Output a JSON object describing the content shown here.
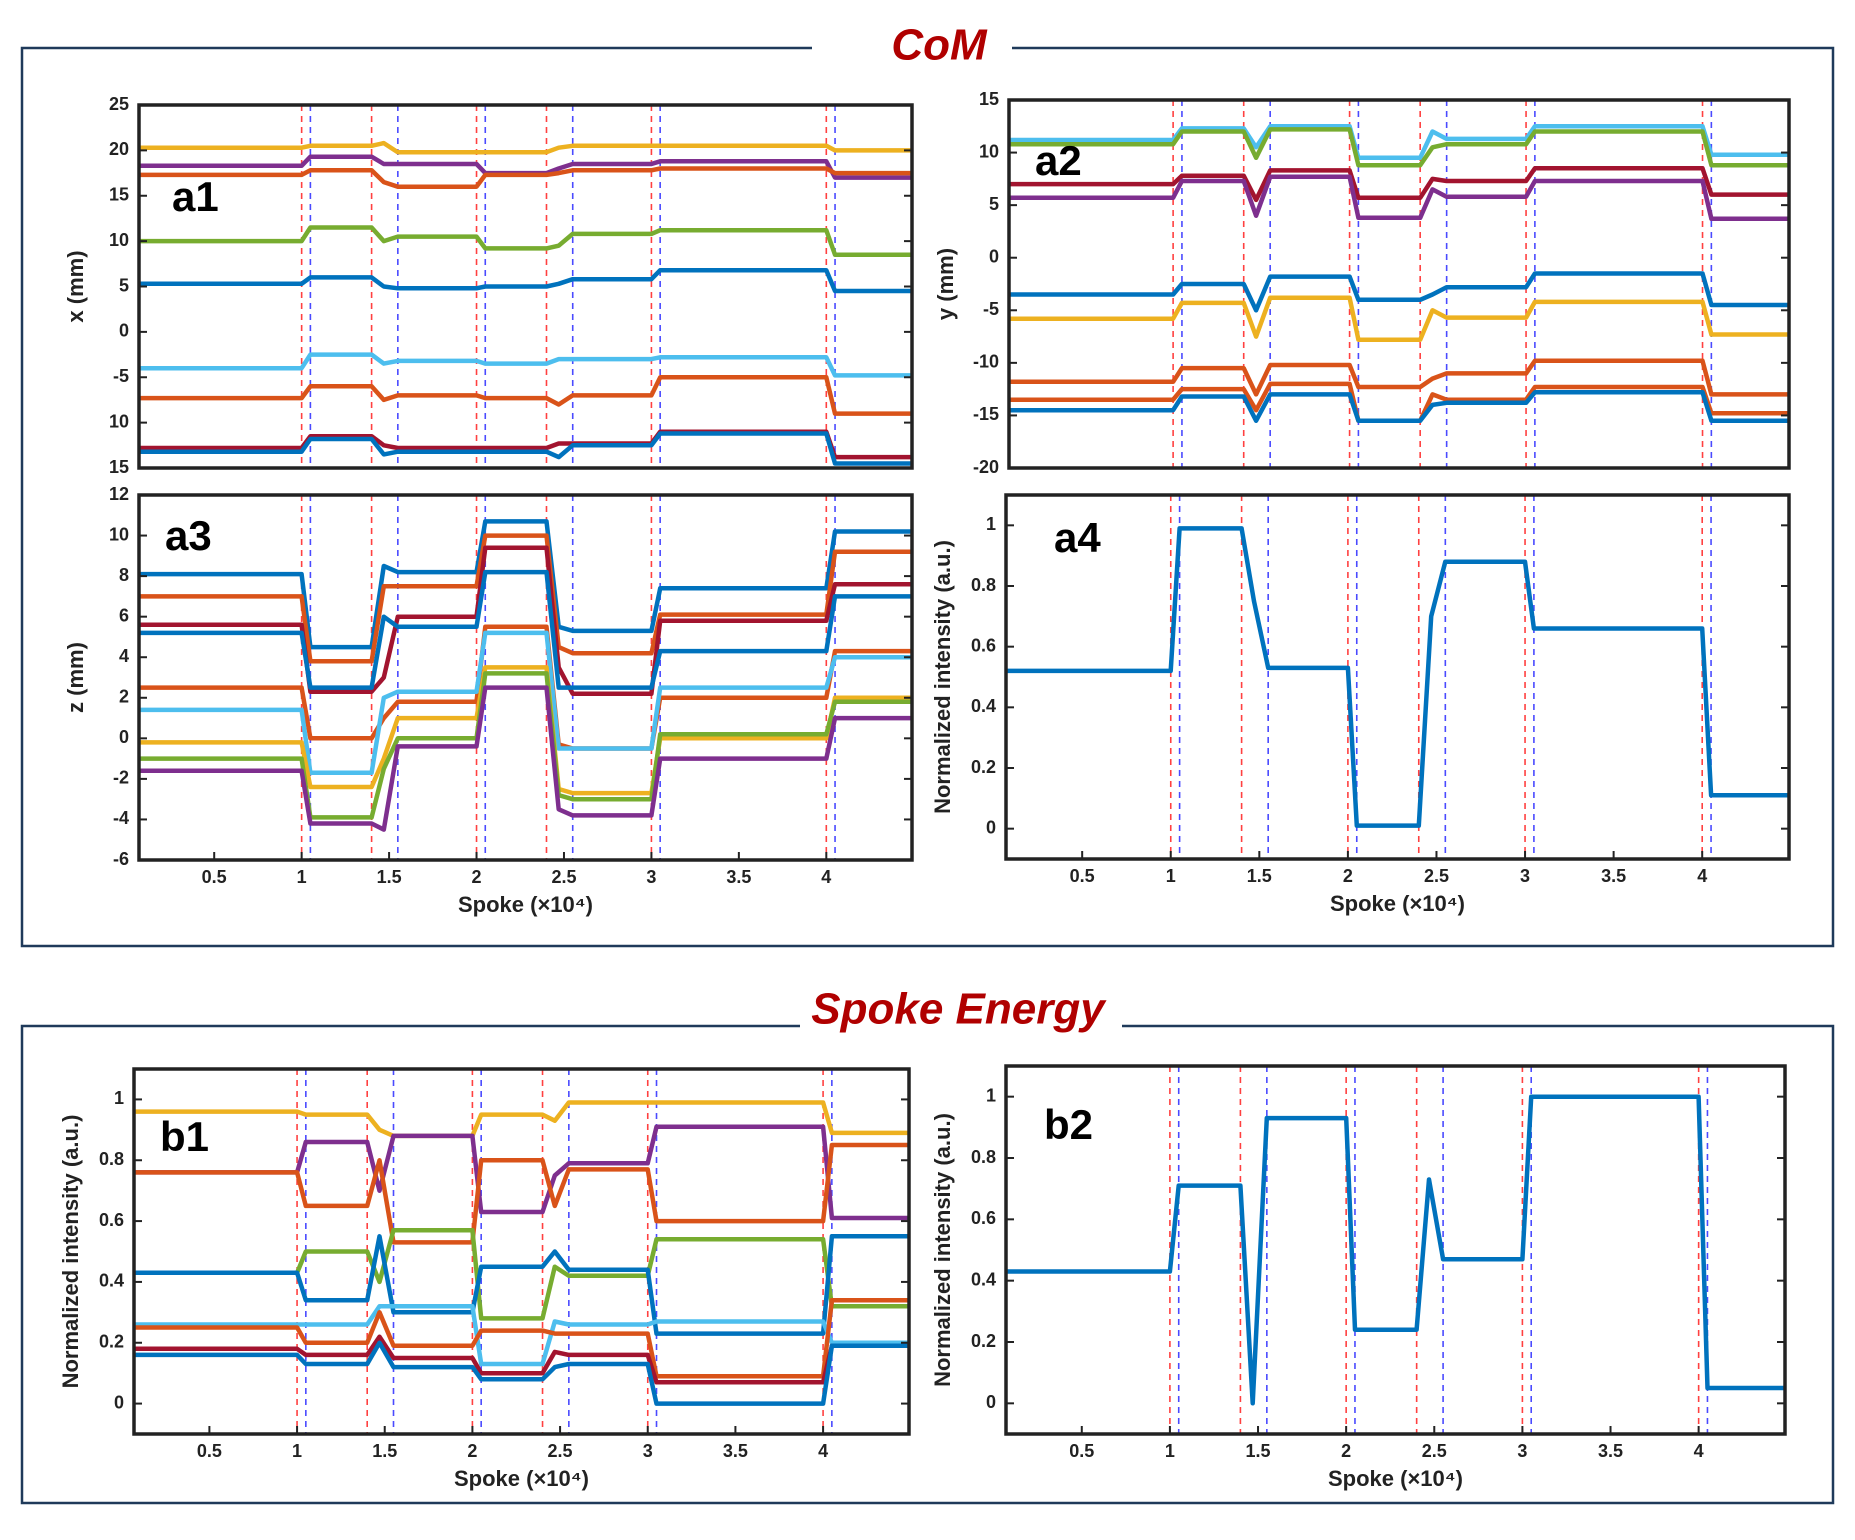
{
  "sections": [
    {
      "title": "CoM"
    },
    {
      "title": "Spoke Energy"
    }
  ],
  "markers": {
    "red": {
      "color": "#ff4040",
      "x": [
        1,
        1.4,
        2,
        2.4,
        3,
        4
      ]
    },
    "blue": {
      "color": "#4a4aff",
      "x": [
        1.05,
        1.55,
        2.05,
        2.55,
        3.05,
        4.05
      ]
    }
  },
  "chart_data": [
    {
      "type": "line",
      "label": "a1",
      "ylabel": "x (mm)",
      "xlim": [
        0.07,
        4.49
      ],
      "ylim": [
        -15,
        25
      ],
      "yticks": [
        25,
        20,
        15,
        10,
        5,
        0,
        -5,
        {
          "value": -10,
          "label": "10"
        },
        {
          "value": -15,
          "label": "15"
        }
      ],
      "x": [
        0.07,
        1,
        1.05,
        1.4,
        1.47,
        1.55,
        2,
        2.05,
        2.4,
        2.47,
        2.55,
        3,
        3.05,
        4,
        4.05,
        4.49
      ],
      "series": [
        {
          "color": "#EDB120",
          "values": [
            20.3,
            20.3,
            20.5,
            20.5,
            20.8,
            19.8,
            19.8,
            19.8,
            19.8,
            20.3,
            20.5,
            20.5,
            20.5,
            20.5,
            20,
            20
          ]
        },
        {
          "color": "#7E2F8E",
          "values": [
            18.3,
            18.3,
            19.3,
            19.3,
            18.5,
            18.5,
            18.5,
            17.5,
            17.5,
            18,
            18.5,
            18.5,
            18.8,
            18.8,
            17,
            17
          ]
        },
        {
          "color": "#D95319",
          "values": [
            17.3,
            17.3,
            17.8,
            17.8,
            16.5,
            16,
            16,
            17.3,
            17.3,
            17.5,
            17.8,
            17.8,
            18,
            18,
            17.5,
            17.5
          ]
        },
        {
          "color": "#77AC30",
          "values": [
            10,
            10,
            11.5,
            11.5,
            10,
            10.5,
            10.5,
            9.2,
            9.2,
            9.5,
            10.8,
            10.8,
            11.2,
            11.2,
            8.5,
            8.5
          ]
        },
        {
          "color": "#0072BD",
          "values": [
            5.3,
            5.3,
            6,
            6,
            5,
            4.8,
            4.8,
            5,
            5,
            5.3,
            5.8,
            5.8,
            6.8,
            6.8,
            4.5,
            4.5
          ]
        },
        {
          "color": "#4DBEEE",
          "values": [
            -4,
            -4,
            -2.5,
            -2.5,
            -3.5,
            -3.2,
            -3.2,
            -3.5,
            -3.5,
            -3,
            -3,
            -3,
            -2.8,
            -2.8,
            -4.8,
            -4.8
          ]
        },
        {
          "color": "#D95319",
          "values": [
            -7.3,
            -7.3,
            -6,
            -6,
            -7.5,
            -7,
            -7,
            -7.3,
            -7.3,
            -8,
            -7,
            -7,
            -5,
            -5,
            -9,
            -9
          ]
        },
        {
          "color": "#A2142F",
          "values": [
            -12.8,
            -12.8,
            -11.5,
            -11.5,
            -12.5,
            -12.8,
            -12.8,
            -12.8,
            -12.8,
            -12.3,
            -12.3,
            -12.3,
            -11,
            -11,
            -13.8,
            -13.8
          ]
        },
        {
          "color": "#0072BD",
          "values": [
            -13.2,
            -13.2,
            -11.8,
            -11.8,
            -13.5,
            -13.2,
            -13.2,
            -13.2,
            -13.2,
            -13.8,
            -12.5,
            -12.5,
            -11.2,
            -11.2,
            -14.5,
            -14.5
          ]
        }
      ]
    },
    {
      "type": "line",
      "label": "a2",
      "ylabel": "y (mm)",
      "xlim": [
        0.07,
        4.49
      ],
      "ylim": [
        -20,
        15
      ],
      "yticks": [
        15,
        10,
        5,
        0,
        -5,
        -10,
        -15,
        -20
      ],
      "x": [
        0.07,
        1,
        1.05,
        1.4,
        1.47,
        1.55,
        2,
        2.05,
        2.4,
        2.47,
        2.55,
        3,
        3.05,
        4,
        4.05,
        4.49
      ],
      "series": [
        {
          "color": "#4DBEEE",
          "values": [
            11.2,
            11.2,
            12.3,
            12.3,
            10.5,
            12.5,
            12.5,
            9.5,
            9.5,
            12,
            11.3,
            11.3,
            12.5,
            12.5,
            9.8,
            9.8
          ]
        },
        {
          "color": "#77AC30",
          "values": [
            10.8,
            10.8,
            12,
            12,
            9.5,
            12.2,
            12.2,
            8.8,
            8.8,
            10.5,
            10.8,
            10.8,
            12,
            12,
            8.8,
            8.8
          ]
        },
        {
          "color": "#A2142F",
          "values": [
            7,
            7,
            7.8,
            7.8,
            5.5,
            8.3,
            8.3,
            5.7,
            5.7,
            7.5,
            7.3,
            7.3,
            8.5,
            8.5,
            6,
            6
          ]
        },
        {
          "color": "#7E2F8E",
          "values": [
            5.7,
            5.7,
            7.3,
            7.3,
            4,
            7.7,
            7.7,
            3.8,
            3.8,
            6.5,
            5.8,
            5.8,
            7.3,
            7.3,
            3.7,
            3.7
          ]
        },
        {
          "color": "#0072BD",
          "values": [
            -3.5,
            -3.5,
            -2.5,
            -2.5,
            -5,
            -1.8,
            -1.8,
            -4,
            -4,
            -3.5,
            -2.8,
            -2.8,
            -1.5,
            -1.5,
            -4.5,
            -4.5
          ]
        },
        {
          "color": "#EDB120",
          "values": [
            -5.8,
            -5.8,
            -4.3,
            -4.3,
            -7.5,
            -3.8,
            -3.8,
            -7.8,
            -7.8,
            -5,
            -5.7,
            -5.7,
            -4.2,
            -4.2,
            -7.3,
            -7.3
          ]
        },
        {
          "color": "#D95319",
          "values": [
            -11.8,
            -11.8,
            -10.5,
            -10.5,
            -13,
            -10.2,
            -10.2,
            -12.3,
            -12.3,
            -11.5,
            -11,
            -11,
            -9.8,
            -9.8,
            -13,
            -13
          ]
        },
        {
          "color": "#D95319",
          "values": [
            -13.5,
            -13.5,
            -12.5,
            -12.5,
            -14.5,
            -12,
            -12,
            -15.5,
            -15.5,
            -13,
            -13.5,
            -13.5,
            -12.3,
            -12.3,
            -14.8,
            -14.8
          ]
        },
        {
          "color": "#0072BD",
          "values": [
            -14.5,
            -14.5,
            -13.2,
            -13.2,
            -15.5,
            -13,
            -13,
            -15.5,
            -15.5,
            -14,
            -13.8,
            -13.8,
            -12.8,
            -12.8,
            -15.5,
            -15.5
          ]
        }
      ]
    },
    {
      "type": "line",
      "label": "a3",
      "ylabel": "z (mm)",
      "xlabel": "Spoke (×10⁴)",
      "xlim": [
        0.07,
        4.49
      ],
      "ylim": [
        -6,
        12
      ],
      "xticks": [
        0.5,
        1,
        1.5,
        2,
        2.5,
        3,
        3.5,
        4
      ],
      "yticks": [
        12,
        10,
        8,
        6,
        4,
        2,
        0,
        -2,
        -4,
        -6
      ],
      "x": [
        0.07,
        1,
        1.05,
        1.4,
        1.47,
        1.55,
        2,
        2.05,
        2.4,
        2.47,
        2.55,
        3,
        3.05,
        4,
        4.05,
        4.49
      ],
      "series": [
        {
          "color": "#0072BD",
          "values": [
            8.1,
            8.1,
            4.5,
            4.5,
            8.5,
            8.2,
            8.2,
            10.7,
            10.7,
            5.5,
            5.3,
            5.3,
            7.4,
            7.4,
            10.2,
            10.2
          ]
        },
        {
          "color": "#D95319",
          "values": [
            7,
            7,
            3.8,
            3.8,
            7.5,
            7.5,
            7.5,
            10,
            10,
            4.5,
            4.2,
            4.2,
            6.1,
            6.1,
            9.2,
            9.2
          ]
        },
        {
          "color": "#A2142F",
          "values": [
            5.6,
            5.6,
            2.3,
            2.3,
            3,
            6,
            6,
            9.4,
            9.4,
            3.5,
            2.2,
            2.2,
            5.8,
            5.8,
            7.6,
            7.6
          ]
        },
        {
          "color": "#0072BD",
          "values": [
            5.2,
            5.2,
            2.5,
            2.5,
            6,
            5.5,
            5.5,
            8.2,
            8.2,
            2.5,
            2.5,
            2.5,
            4.3,
            4.3,
            7,
            7
          ]
        },
        {
          "color": "#D95319",
          "values": [
            2.5,
            2.5,
            0,
            0,
            1,
            1.8,
            1.8,
            5.5,
            5.5,
            -0.3,
            -0.5,
            -0.5,
            2,
            2,
            4.3,
            4.3
          ]
        },
        {
          "color": "#4DBEEE",
          "values": [
            1.4,
            1.4,
            -1.7,
            -1.7,
            2,
            2.3,
            2.3,
            5.2,
            5.2,
            -0.5,
            -0.5,
            -0.5,
            2.5,
            2.5,
            4,
            4
          ]
        },
        {
          "color": "#EDB120",
          "values": [
            -0.2,
            -0.2,
            -2.4,
            -2.4,
            -1,
            1,
            1,
            3.5,
            3.5,
            -2.5,
            -2.7,
            -2.7,
            0,
            0,
            2,
            2
          ]
        },
        {
          "color": "#77AC30",
          "values": [
            -1,
            -1,
            -3.9,
            -3.9,
            -1.5,
            0,
            0,
            3.2,
            3.2,
            -2.8,
            -3,
            -3,
            0.2,
            0.2,
            1.8,
            1.8
          ]
        },
        {
          "color": "#7E2F8E",
          "values": [
            -1.6,
            -1.6,
            -4.2,
            -4.2,
            -4.5,
            -0.4,
            -0.4,
            2.5,
            2.5,
            -3.5,
            -3.8,
            -3.8,
            -1,
            -1,
            1,
            1
          ]
        }
      ]
    },
    {
      "type": "line",
      "label": "a4",
      "ylabel": "Normalized intensity (a.u.)",
      "xlabel": "Spoke (×10⁴)",
      "xlim": [
        0.07,
        4.49
      ],
      "ylim": [
        -0.1,
        1.1
      ],
      "xticks": [
        0.5,
        1,
        1.5,
        2,
        2.5,
        3,
        3.5,
        4
      ],
      "yticks": [
        1,
        0.8,
        0.6,
        0.4,
        0.2,
        0
      ],
      "x": [
        0.07,
        1,
        1.05,
        1.4,
        1.47,
        1.55,
        2,
        2.05,
        2.4,
        2.47,
        2.55,
        3,
        3.05,
        4,
        4.05,
        4.49
      ],
      "series": [
        {
          "color": "#0072BD",
          "values": [
            0.52,
            0.52,
            0.99,
            0.99,
            0.75,
            0.53,
            0.53,
            0.01,
            0.01,
            0.7,
            0.88,
            0.88,
            0.66,
            0.66,
            0.11,
            0.11
          ]
        }
      ]
    },
    {
      "type": "line",
      "label": "b1",
      "ylabel": "Normalized intensity (a.u.)",
      "xlabel": "Spoke (×10⁴)",
      "xlim": [
        0.07,
        4.49
      ],
      "ylim": [
        -0.1,
        1.1
      ],
      "xticks": [
        0.5,
        1,
        1.5,
        2,
        2.5,
        3,
        3.5,
        4
      ],
      "yticks": [
        1,
        0.8,
        0.6,
        0.4,
        0.2,
        0
      ],
      "x": [
        0.07,
        1,
        1.05,
        1.4,
        1.47,
        1.55,
        2,
        2.05,
        2.4,
        2.47,
        2.55,
        3,
        3.05,
        4,
        4.05,
        4.49
      ],
      "series": [
        {
          "color": "#EDB120",
          "values": [
            0.96,
            0.96,
            0.95,
            0.95,
            0.9,
            0.88,
            0.88,
            0.95,
            0.95,
            0.93,
            0.99,
            0.99,
            0.99,
            0.99,
            0.89,
            0.89
          ]
        },
        {
          "color": "#7E2F8E",
          "values": [
            0.76,
            0.76,
            0.86,
            0.86,
            0.7,
            0.88,
            0.88,
            0.63,
            0.63,
            0.75,
            0.79,
            0.79,
            0.91,
            0.91,
            0.61,
            0.61
          ]
        },
        {
          "color": "#D95319",
          "values": [
            0.76,
            0.76,
            0.65,
            0.65,
            0.8,
            0.53,
            0.53,
            0.8,
            0.8,
            0.65,
            0.77,
            0.77,
            0.6,
            0.6,
            0.85,
            0.85
          ]
        },
        {
          "color": "#77AC30",
          "values": [
            0.43,
            0.43,
            0.5,
            0.5,
            0.4,
            0.57,
            0.57,
            0.28,
            0.28,
            0.45,
            0.42,
            0.42,
            0.54,
            0.54,
            0.32,
            0.32
          ]
        },
        {
          "color": "#0072BD",
          "values": [
            0.43,
            0.43,
            0.34,
            0.34,
            0.55,
            0.3,
            0.3,
            0.45,
            0.45,
            0.5,
            0.44,
            0.44,
            0.23,
            0.23,
            0.55,
            0.55
          ]
        },
        {
          "color": "#4DBEEE",
          "values": [
            0.26,
            0.26,
            0.26,
            0.26,
            0.32,
            0.32,
            0.32,
            0.13,
            0.13,
            0.27,
            0.26,
            0.26,
            0.27,
            0.27,
            0.2,
            0.2
          ]
        },
        {
          "color": "#D95319",
          "values": [
            0.25,
            0.25,
            0.2,
            0.2,
            0.3,
            0.19,
            0.19,
            0.24,
            0.24,
            0.23,
            0.23,
            0.23,
            0.09,
            0.09,
            0.34,
            0.34
          ]
        },
        {
          "color": "#A2142F",
          "values": [
            0.18,
            0.18,
            0.16,
            0.16,
            0.22,
            0.15,
            0.15,
            0.1,
            0.1,
            0.17,
            0.16,
            0.16,
            0.07,
            0.07,
            0.19,
            0.19
          ]
        },
        {
          "color": "#0072BD",
          "values": [
            0.16,
            0.16,
            0.13,
            0.13,
            0.2,
            0.12,
            0.12,
            0.08,
            0.08,
            0.12,
            0.13,
            0.13,
            0,
            0,
            0.19,
            0.19
          ]
        }
      ]
    },
    {
      "type": "line",
      "label": "b2",
      "ylabel": "Normalized intensity (a.u.)",
      "xlabel": "Spoke (×10⁴)",
      "xlim": [
        0.07,
        4.49
      ],
      "ylim": [
        -0.1,
        1.1
      ],
      "xticks": [
        0.5,
        1,
        1.5,
        2,
        2.5,
        3,
        3.5,
        4
      ],
      "yticks": [
        1,
        0.8,
        0.6,
        0.4,
        0.2,
        0
      ],
      "x": [
        0.07,
        1,
        1.05,
        1.4,
        1.47,
        1.55,
        2,
        2.05,
        2.4,
        2.47,
        2.55,
        3,
        3.05,
        4,
        4.05,
        4.49
      ],
      "series": [
        {
          "color": "#0072BD",
          "values": [
            0.43,
            0.43,
            0.71,
            0.71,
            0,
            0.93,
            0.93,
            0.24,
            0.24,
            0.73,
            0.47,
            0.47,
            1,
            1,
            0.05,
            0.05
          ]
        }
      ]
    }
  ]
}
